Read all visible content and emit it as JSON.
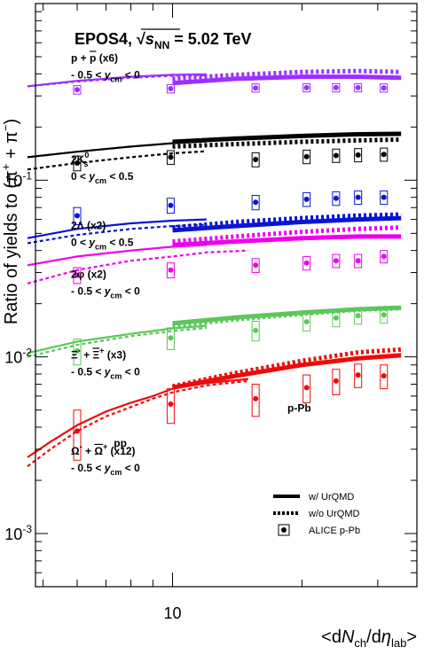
{
  "chart_data": {
    "type": "line",
    "title": "EPOS4, √s_NN = 5.02 TeV",
    "title_parts": {
      "prefix": "EPOS4, ",
      "root": "s",
      "sub": "NN",
      "suffix": " = 5.02 TeV"
    },
    "ylabel": "Ratio of yields to (π⁺ + π⁻)",
    "xlabel": "<dN_ch/dη_lab>",
    "x_scale": "log",
    "y_scale": "log",
    "xlim": [
      4.8,
      37
    ],
    "ylim": [
      0.0005,
      1.0
    ],
    "x_tick_labels": [
      {
        "value": 10,
        "label": "10"
      }
    ],
    "y_tick_labels": [
      {
        "value": 0.1,
        "base": "10",
        "exp": "-1"
      },
      {
        "value": 0.01,
        "base": "10",
        "exp": "-2"
      },
      {
        "value": 0.001,
        "base": "10",
        "exp": "-3"
      }
    ],
    "system_labels": [
      {
        "text": "pp",
        "x": 7.3,
        "y": 0.0031
      },
      {
        "text": "p-Pb",
        "x": 18.5,
        "y": 0.0049
      }
    ],
    "legend": {
      "position": "bottom-right",
      "entries": [
        {
          "label": "w/ UrQMD",
          "style": "solid"
        },
        {
          "label": "w/o UrQMD",
          "style": "dashed"
        },
        {
          "label": "ALICE p-Pb",
          "style": "marker"
        }
      ]
    },
    "series": [
      {
        "name": "p + p̄ (x6)",
        "range": "- 0.5 < y_cm < 0",
        "color": "#9b30ff",
        "label_lines": [
          [
            "p + ",
            "p̄",
            " (x6)"
          ],
          [
            "- 0.5 < ",
            "y",
            "cm",
            " < 0"
          ]
        ],
        "label_y": 0.47,
        "pp_with": {
          "x": [
            4.6,
            6,
            8,
            10,
            12
          ],
          "y": [
            0.34,
            0.365,
            0.385,
            0.395,
            0.398
          ]
        },
        "pp_without": {
          "x": [
            4.6,
            6,
            8,
            10,
            12
          ],
          "y": [
            0.34,
            0.362,
            0.38,
            0.39,
            0.393
          ]
        },
        "pPb_with": {
          "x": [
            10,
            14,
            20,
            27,
            34
          ],
          "y": [
            0.355,
            0.375,
            0.385,
            0.385,
            0.38
          ]
        },
        "pPb_without": {
          "x": [
            10,
            14,
            20,
            27,
            34
          ],
          "y": [
            0.375,
            0.395,
            0.41,
            0.415,
            0.41
          ]
        },
        "alice_x": [
          6.0,
          9.9,
          15.6,
          20.5,
          24.0,
          27.0,
          31.0
        ],
        "alice_y": [
          0.325,
          0.33,
          0.333,
          0.334,
          0.334,
          0.334,
          0.333
        ],
        "alice_err": [
          0.018,
          0.018,
          0.018,
          0.018,
          0.018,
          0.018,
          0.018
        ]
      },
      {
        "name": "2K⁰s",
        "range": "0 < y_cm < 0.5",
        "color": "#000000",
        "label_lines": [
          [
            "2K",
            "0",
            "s"
          ],
          [
            "0 < ",
            "y",
            "cm",
            " < 0.5"
          ]
        ],
        "label_y": 0.125,
        "pp_with": {
          "x": [
            4.6,
            6,
            8,
            10,
            12
          ],
          "y": [
            0.135,
            0.145,
            0.155,
            0.162,
            0.166
          ]
        },
        "pp_without": {
          "x": [
            4.6,
            6,
            8,
            10,
            12
          ],
          "y": [
            0.115,
            0.125,
            0.135,
            0.142,
            0.146
          ]
        },
        "pPb_with": {
          "x": [
            10,
            14,
            20,
            27,
            34
          ],
          "y": [
            0.165,
            0.172,
            0.178,
            0.182,
            0.183
          ]
        },
        "pPb_without": {
          "x": [
            10,
            14,
            20,
            27,
            34
          ],
          "y": [
            0.155,
            0.16,
            0.165,
            0.168,
            0.17
          ]
        },
        "alice_x": [
          6.0,
          9.9,
          15.6,
          20.5,
          24.0,
          27.0,
          31.0
        ],
        "alice_y": [
          0.125,
          0.135,
          0.131,
          0.136,
          0.138,
          0.139,
          0.14
        ],
        "alice_err": [
          0.012,
          0.012,
          0.012,
          0.012,
          0.012,
          0.012,
          0.012
        ]
      },
      {
        "name": "2Λ (x2)",
        "range": "0 < y_cm < 0.5",
        "color": "#0a14d2",
        "label_lines": [
          [
            "2Λ (x2)"
          ],
          [
            "0 < ",
            "y",
            "cm",
            " < 0.5"
          ]
        ],
        "label_y": 0.053,
        "pp_with": {
          "x": [
            4.6,
            6,
            8,
            10,
            12
          ],
          "y": [
            0.047,
            0.053,
            0.057,
            0.059,
            0.06
          ]
        },
        "pp_without": {
          "x": [
            4.6,
            6,
            8,
            10,
            12
          ],
          "y": [
            0.044,
            0.049,
            0.053,
            0.055,
            0.056
          ]
        },
        "pPb_with": {
          "x": [
            10,
            14,
            20,
            27,
            34
          ],
          "y": [
            0.052,
            0.055,
            0.058,
            0.06,
            0.061
          ]
        },
        "pPb_without": {
          "x": [
            10,
            14,
            20,
            27,
            34
          ],
          "y": [
            0.054,
            0.058,
            0.061,
            0.063,
            0.064
          ]
        },
        "alice_x": [
          6.0,
          9.9,
          15.6,
          20.5,
          24.0,
          27.0,
          31.0
        ],
        "alice_y": [
          0.063,
          0.072,
          0.075,
          0.078,
          0.079,
          0.08,
          0.08
        ],
        "alice_err": [
          0.007,
          0.007,
          0.007,
          0.007,
          0.007,
          0.007,
          0.007
        ]
      },
      {
        "name": "2φ (x2)",
        "range": "- 0.5 < y_cm < 0",
        "color": "#ee00ee",
        "label_lines": [
          [
            "2φ (x2)"
          ],
          [
            "- 0.5 < ",
            "y",
            "cm",
            " < 0"
          ]
        ],
        "label_y": 0.028,
        "pp_with": {
          "x": [
            4.6,
            6,
            8,
            10,
            12
          ],
          "y": [
            0.033,
            0.037,
            0.04,
            0.042,
            0.043
          ]
        },
        "pp_without": {
          "x": [
            4.6,
            6,
            8,
            10,
            12,
            15
          ],
          "y": [
            0.026,
            0.031,
            0.035,
            0.037,
            0.039,
            0.04
          ]
        },
        "pPb_with": {
          "x": [
            10,
            14,
            20,
            27,
            34
          ],
          "y": [
            0.043,
            0.045,
            0.047,
            0.048,
            0.048
          ]
        },
        "pPb_without": {
          "x": [
            10,
            14,
            20,
            27,
            34
          ],
          "y": [
            0.045,
            0.048,
            0.051,
            0.053,
            0.054
          ]
        },
        "alice_x": [
          6.0,
          9.9,
          15.6,
          20.5,
          24.0,
          27.0,
          31.0
        ],
        "alice_y": [
          0.029,
          0.031,
          0.033,
          0.034,
          0.035,
          0.035,
          0.037
        ],
        "alice_err": [
          0.003,
          0.003,
          0.003,
          0.003,
          0.003,
          0.003,
          0.003
        ]
      },
      {
        "name": "Ξ⁻ + Ξ̄⁺ (x3)",
        "range": "- 0.5 < y_cm < 0",
        "color": "#5ac85a",
        "label_lines": [
          [
            "Ξ",
            "-",
            " + ",
            "Ξ",
            "+",
            " (x3)"
          ],
          [
            "- 0.5 < ",
            "y",
            "cm",
            " < 0"
          ]
        ],
        "label_y": 0.0098,
        "pp_with": {
          "x": [
            4.6,
            6,
            8,
            10,
            12
          ],
          "y": [
            0.0105,
            0.0122,
            0.0135,
            0.0145,
            0.015
          ]
        },
        "pp_without": {
          "x": [
            4.6,
            6,
            8,
            10,
            12
          ],
          "y": [
            0.01,
            0.0117,
            0.0131,
            0.014,
            0.0146
          ]
        },
        "pPb_with": {
          "x": [
            10,
            14,
            20,
            27,
            34
          ],
          "y": [
            0.0155,
            0.0167,
            0.0178,
            0.0186,
            0.019
          ]
        },
        "pPb_without": {
          "x": [
            10,
            14,
            20,
            27,
            34
          ],
          "y": [
            0.015,
            0.0163,
            0.0175,
            0.0185,
            0.0188
          ]
        },
        "alice_x": [
          6.0,
          9.9,
          15.6,
          20.5,
          24.0,
          27.0,
          31.0
        ],
        "alice_y": [
          0.0108,
          0.0128,
          0.0141,
          0.0158,
          0.0166,
          0.0171,
          0.0173
        ],
        "alice_err": [
          0.0018,
          0.0018,
          0.0018,
          0.0018,
          0.0018,
          0.0018,
          0.0018
        ]
      },
      {
        "name": "Ω⁻ + Ω̄⁺ (x12)",
        "range": "- 0.5 < y_cm < 0",
        "color": "#ee0a0a",
        "label_lines": [
          [
            "Ω",
            "-",
            " + ",
            "Ω",
            "+",
            " (x12)"
          ],
          [
            "- 0.5 < ",
            "y",
            "cm",
            " < 0"
          ]
        ],
        "label_y": 0.0028,
        "pp_with": {
          "x": [
            4.6,
            5.2,
            6,
            7,
            8,
            9,
            10,
            12,
            15
          ],
          "y": [
            0.0027,
            0.0033,
            0.0041,
            0.0049,
            0.0055,
            0.006,
            0.0066,
            0.0071,
            0.0075
          ]
        },
        "pp_without": {
          "x": [
            4.6,
            5.2,
            6,
            7,
            8,
            9,
            10,
            12,
            15
          ],
          "y": [
            0.0024,
            0.003,
            0.0038,
            0.0046,
            0.0052,
            0.0058,
            0.0063,
            0.0069,
            0.0073
          ]
        },
        "pPb_with": {
          "x": [
            10,
            14,
            20,
            27,
            34
          ],
          "y": [
            0.0067,
            0.0078,
            0.009,
            0.0098,
            0.0102
          ]
        },
        "pPb_without": {
          "x": [
            10,
            14,
            20,
            27,
            34
          ],
          "y": [
            0.0068,
            0.0081,
            0.0095,
            0.0106,
            0.011
          ]
        },
        "alice_x": [
          6.0,
          9.9,
          15.6,
          20.5,
          24.0,
          27.0,
          31.0
        ],
        "alice_y": [
          0.0038,
          0.0054,
          0.0058,
          0.0067,
          0.0073,
          0.0079,
          0.0078
        ],
        "alice_err": [
          0.0012,
          0.0012,
          0.0012,
          0.0012,
          0.0012,
          0.0012,
          0.0012
        ]
      }
    ]
  }
}
